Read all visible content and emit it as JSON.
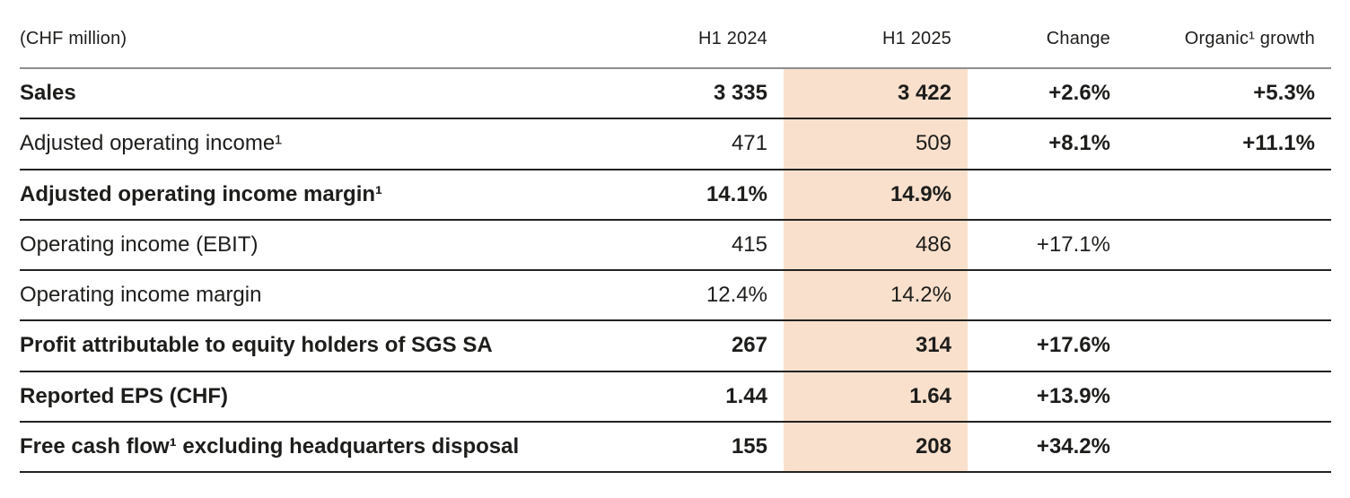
{
  "page": {
    "background_color": "#ffffff",
    "text_color": "#1d1d1b",
    "highlight_color": "#f9e0cc",
    "header_rule_color": "#8e8e8e",
    "row_rule_color": "#222220"
  },
  "table": {
    "unit_label": "(CHF million)",
    "columns": [
      {
        "key": "h1_2024",
        "label": "H1 2024",
        "highlighted": false
      },
      {
        "key": "h1_2025",
        "label": "H1 2025",
        "highlighted": true
      },
      {
        "key": "change",
        "label": "Change",
        "highlighted": false
      },
      {
        "key": "organic",
        "label": "Organic¹ growth",
        "highlighted": false
      }
    ],
    "rows": [
      {
        "label": "Sales",
        "label_bold": true,
        "values": {
          "h1_2024": "3 335",
          "h1_2025": "3 422",
          "change": "+2.6%",
          "organic": "+5.3%"
        },
        "bold": {
          "h1_2024": true,
          "h1_2025": true,
          "change": true,
          "organic": true
        }
      },
      {
        "label": "Adjusted operating income¹",
        "label_bold": false,
        "values": {
          "h1_2024": "471",
          "h1_2025": "509",
          "change": "+8.1%",
          "organic": "+11.1%"
        },
        "bold": {
          "h1_2024": false,
          "h1_2025": false,
          "change": true,
          "organic": true
        }
      },
      {
        "label": "Adjusted operating income margin¹",
        "label_bold": true,
        "values": {
          "h1_2024": "14.1%",
          "h1_2025": "14.9%",
          "change": "",
          "organic": ""
        },
        "bold": {
          "h1_2024": true,
          "h1_2025": true,
          "change": false,
          "organic": false
        }
      },
      {
        "label": "Operating income (EBIT)",
        "label_bold": false,
        "values": {
          "h1_2024": "415",
          "h1_2025": "486",
          "change": "+17.1%",
          "organic": ""
        },
        "bold": {
          "h1_2024": false,
          "h1_2025": false,
          "change": false,
          "organic": false
        }
      },
      {
        "label": "Operating income margin",
        "label_bold": false,
        "values": {
          "h1_2024": "12.4%",
          "h1_2025": "14.2%",
          "change": "",
          "organic": ""
        },
        "bold": {
          "h1_2024": false,
          "h1_2025": false,
          "change": false,
          "organic": false
        }
      },
      {
        "label": "Profit attributable to equity holders of SGS SA",
        "label_bold": true,
        "values": {
          "h1_2024": "267",
          "h1_2025": "314",
          "change": "+17.6%",
          "organic": ""
        },
        "bold": {
          "h1_2024": true,
          "h1_2025": true,
          "change": true,
          "organic": false
        }
      },
      {
        "label": "Reported EPS (CHF)",
        "label_bold": true,
        "values": {
          "h1_2024": "1.44",
          "h1_2025": "1.64",
          "change": "+13.9%",
          "organic": ""
        },
        "bold": {
          "h1_2024": true,
          "h1_2025": true,
          "change": true,
          "organic": false
        }
      },
      {
        "label": "Free cash flow¹ excluding headquarters disposal",
        "label_bold": true,
        "values": {
          "h1_2024": "155",
          "h1_2025": "208",
          "change": "+34.2%",
          "organic": ""
        },
        "bold": {
          "h1_2024": true,
          "h1_2025": true,
          "change": true,
          "organic": false
        }
      }
    ]
  }
}
